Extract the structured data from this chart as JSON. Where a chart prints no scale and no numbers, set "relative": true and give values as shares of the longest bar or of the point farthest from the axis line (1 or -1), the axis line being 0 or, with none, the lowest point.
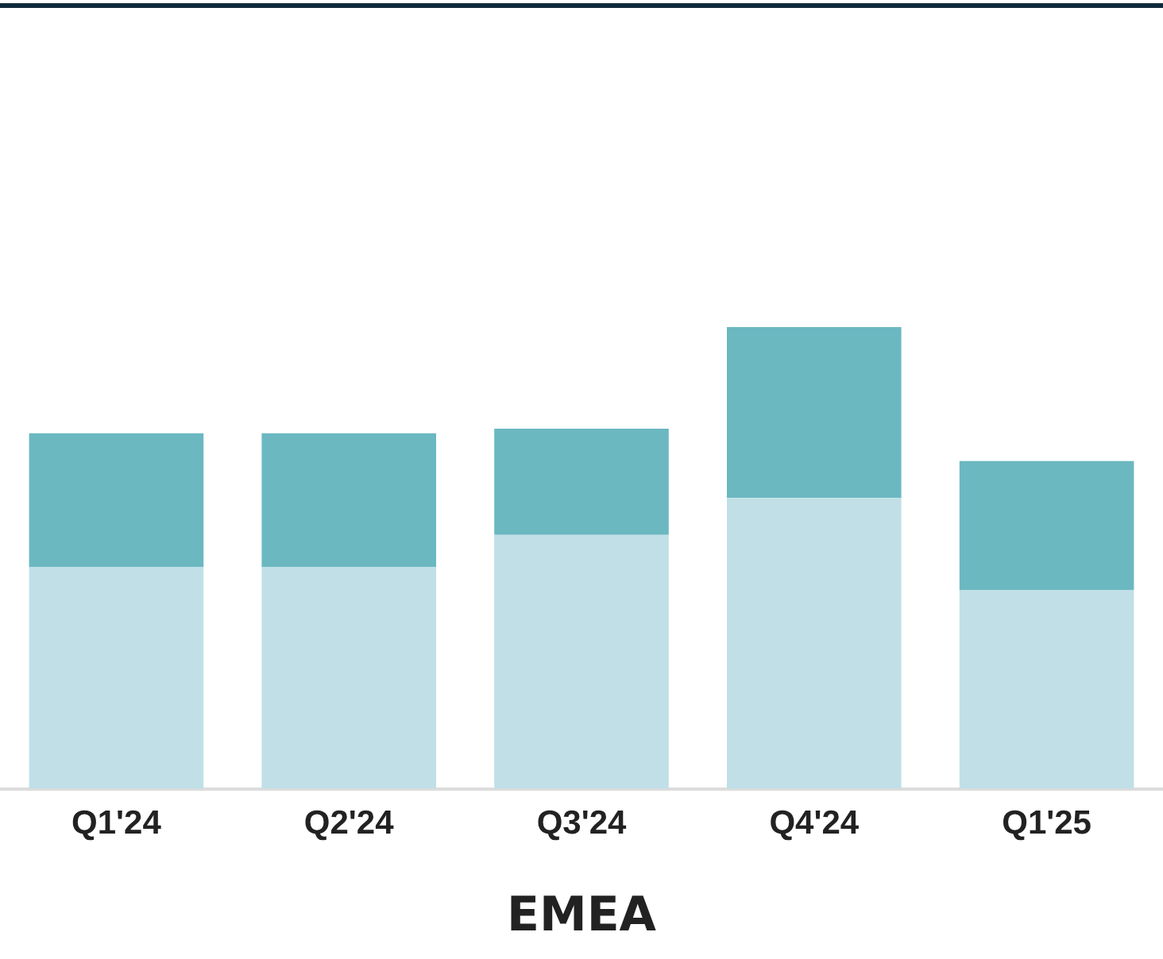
{
  "chart_data": {
    "type": "bar",
    "title": "EMEA",
    "categories": [
      "Q1'24",
      "Q2'24",
      "Q3'24",
      "Q4'24",
      "Q1'25"
    ],
    "stacked": true,
    "relative": true,
    "legend": false,
    "grid": false,
    "series": [
      {
        "color": "#c0dfe7",
        "values": [
          0.48,
          0.48,
          0.55,
          0.63,
          0.43
        ]
      },
      {
        "color": "#6bb8c1",
        "values": [
          0.29,
          0.29,
          0.23,
          0.37,
          0.28
        ]
      }
    ]
  }
}
